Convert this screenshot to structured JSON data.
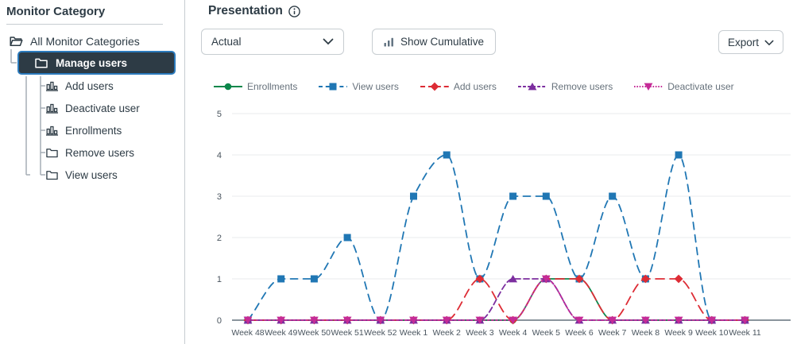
{
  "sidebar": {
    "title": "Monitor Category",
    "root": {
      "label": "All Monitor Categories"
    },
    "selected": {
      "label": "Manage users"
    },
    "children": [
      {
        "label": "Add users",
        "icon": "bar-chart"
      },
      {
        "label": "Deactivate user",
        "icon": "bar-chart"
      },
      {
        "label": "Enrollments",
        "icon": "bar-chart"
      },
      {
        "label": "Remove users",
        "icon": "folder"
      },
      {
        "label": "View users",
        "icon": "folder"
      }
    ]
  },
  "main": {
    "title": "Presentation",
    "controls": {
      "metric_select_value": "Actual",
      "cumulative_button": "Show Cumulative",
      "export_button": "Export"
    }
  },
  "colors": {
    "ink": "#2D3B45",
    "border": "#C7CDD1",
    "focus_ring": "#2B7ABC",
    "gridline": "#E9EBED",
    "axis_line": "#8A949C",
    "tick_text": "#49545E",
    "legend_text": "#66717B"
  },
  "chart_data": {
    "type": "line",
    "categories": [
      "Week 48",
      "Week 49",
      "Week 50",
      "Week 51",
      "Week 52",
      "Week 1",
      "Week 2",
      "Week 3",
      "Week 4",
      "Week 5",
      "Week 6",
      "Week 7",
      "Week 8",
      "Week 9",
      "Week 10",
      "Week 11"
    ],
    "ylim": [
      0,
      5
    ],
    "yticks": [
      0,
      1,
      2,
      3,
      4,
      5
    ],
    "grid": true,
    "legend_position": "top",
    "series": [
      {
        "name": "Enrollments",
        "color": "#0B874B",
        "marker": "circle",
        "dash": "",
        "values": [
          0,
          0,
          0,
          0,
          0,
          0,
          0,
          0,
          0,
          1,
          1,
          0,
          0,
          0,
          0,
          0
        ]
      },
      {
        "name": "View users",
        "color": "#2077B4",
        "marker": "square",
        "dash": "9 7",
        "values": [
          0,
          1,
          1,
          2,
          0,
          3,
          4,
          1,
          3,
          3,
          1,
          3,
          1,
          4,
          0,
          0
        ]
      },
      {
        "name": "Add users",
        "color": "#DD2C35",
        "marker": "diamond",
        "dash": "11 7",
        "values": [
          0,
          0,
          0,
          0,
          0,
          0,
          0,
          1,
          0,
          1,
          1,
          0,
          1,
          1,
          0,
          0
        ]
      },
      {
        "name": "Remove users",
        "color": "#7C2E9F",
        "marker": "triangle-up",
        "dash": "7 4",
        "values": [
          0,
          0,
          0,
          0,
          0,
          0,
          0,
          0,
          1,
          1,
          0,
          0,
          0,
          0,
          0,
          0
        ]
      },
      {
        "name": "Deactivate user",
        "color": "#C52B97",
        "marker": "triangle-down",
        "dash": "2 3.2",
        "values": [
          0,
          0,
          0,
          0,
          0,
          0,
          0,
          0,
          0,
          1,
          0,
          0,
          0,
          0,
          0,
          0
        ]
      }
    ]
  }
}
